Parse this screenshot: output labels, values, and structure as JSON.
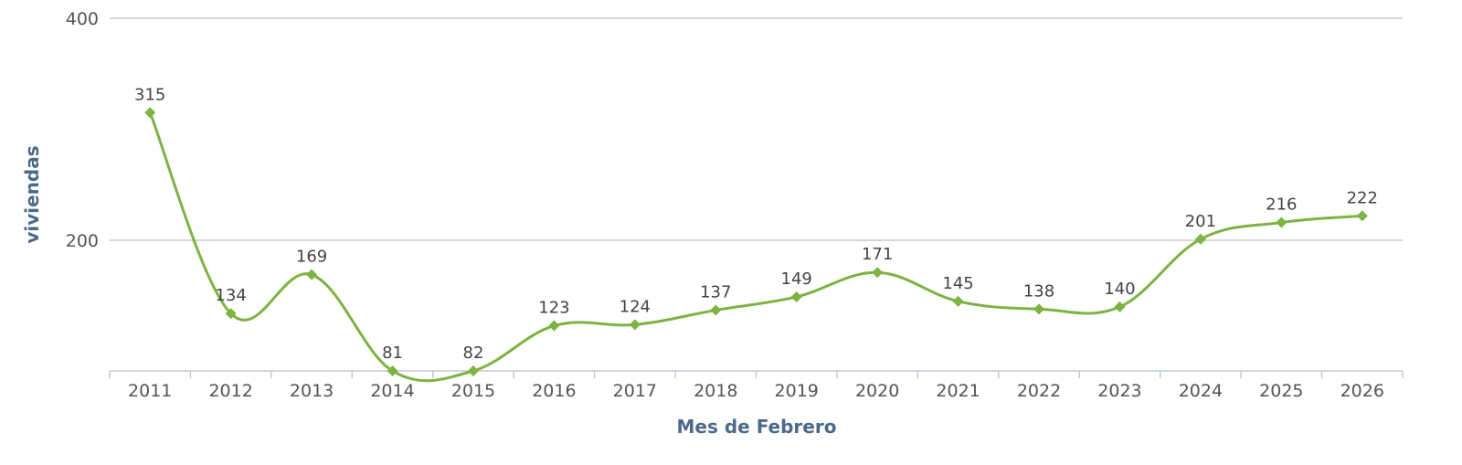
{
  "chart_data": {
    "type": "line",
    "title": "",
    "xlabel": "Mes de Febrero",
    "ylabel": "viviendas",
    "categories": [
      "2011",
      "2012",
      "2013",
      "2014",
      "2015",
      "2016",
      "2017",
      "2018",
      "2019",
      "2020",
      "2021",
      "2022",
      "2023",
      "2024",
      "2025",
      "2026"
    ],
    "series": [
      {
        "name": "viviendas",
        "color": "#7cb342",
        "values": [
          315,
          134,
          169,
          81,
          82,
          123,
          124,
          137,
          149,
          171,
          145,
          138,
          140,
          201,
          216,
          222
        ]
      }
    ],
    "y_ticks": [
      200,
      400
    ],
    "ylim": [
      80,
      400
    ],
    "grid": true,
    "legend": "none",
    "smooth": true,
    "marker": "diamond",
    "data_labels": true
  },
  "colors": {
    "line": "#7cb342",
    "grid": "#c8c8c8",
    "axis": "#c0c8d8",
    "axis_title": "#4b6a8a",
    "tick_text": "#555555"
  }
}
